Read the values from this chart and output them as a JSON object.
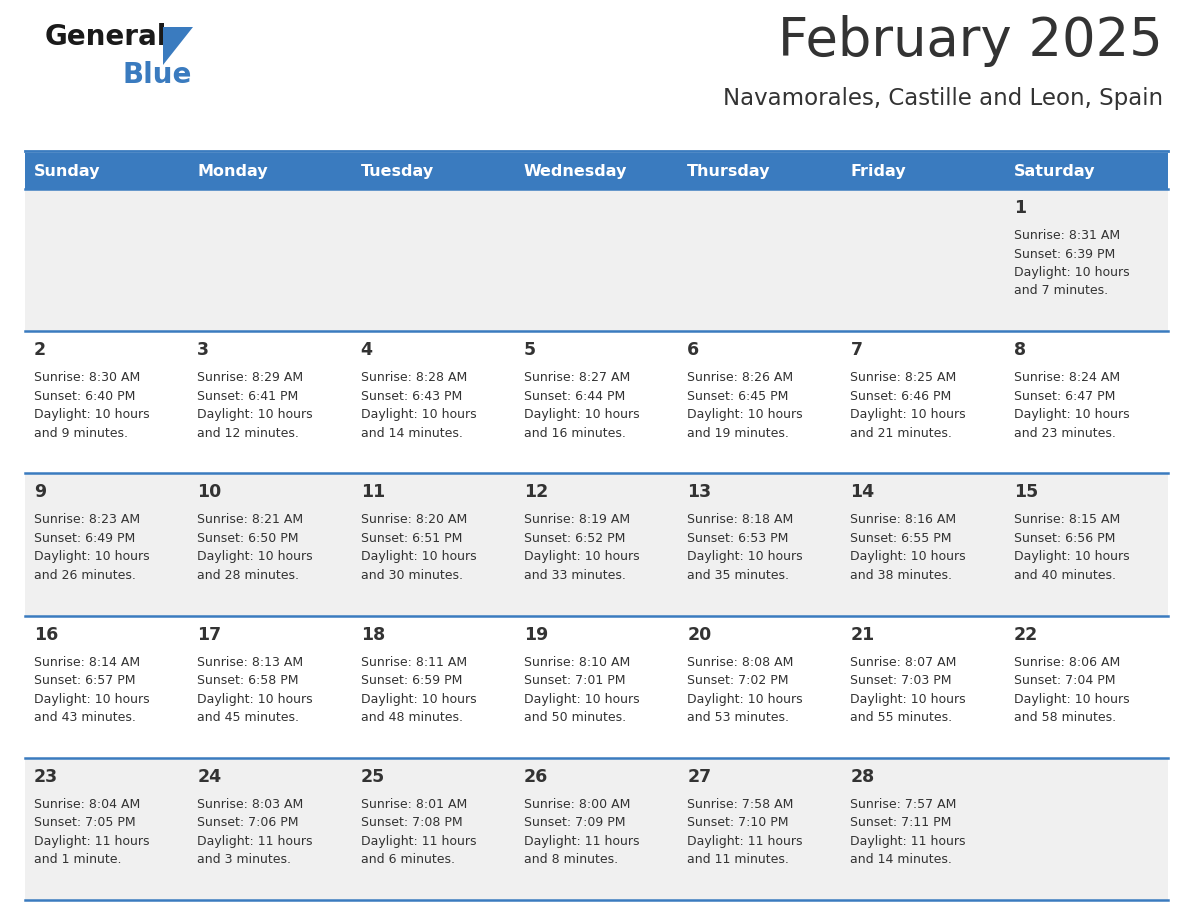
{
  "title": "February 2025",
  "subtitle": "Navamorales, Castille and Leon, Spain",
  "days_of_week": [
    "Sunday",
    "Monday",
    "Tuesday",
    "Wednesday",
    "Thursday",
    "Friday",
    "Saturday"
  ],
  "header_bg": "#3a7bbf",
  "header_text": "#FFFFFF",
  "row_bg_odd": "#F0F0F0",
  "row_bg_even": "#FFFFFF",
  "separator_color": "#3a7bbf",
  "text_color": "#333333",
  "day_num_color": "#333333",
  "calendar_data": [
    [
      null,
      null,
      null,
      null,
      null,
      null,
      {
        "day": "1",
        "sunrise": "8:31 AM",
        "sunset": "6:39 PM",
        "daylight_line1": "10 hours",
        "daylight_line2": "and 7 minutes."
      }
    ],
    [
      {
        "day": "2",
        "sunrise": "8:30 AM",
        "sunset": "6:40 PM",
        "daylight_line1": "10 hours",
        "daylight_line2": "and 9 minutes."
      },
      {
        "day": "3",
        "sunrise": "8:29 AM",
        "sunset": "6:41 PM",
        "daylight_line1": "10 hours",
        "daylight_line2": "and 12 minutes."
      },
      {
        "day": "4",
        "sunrise": "8:28 AM",
        "sunset": "6:43 PM",
        "daylight_line1": "10 hours",
        "daylight_line2": "and 14 minutes."
      },
      {
        "day": "5",
        "sunrise": "8:27 AM",
        "sunset": "6:44 PM",
        "daylight_line1": "10 hours",
        "daylight_line2": "and 16 minutes."
      },
      {
        "day": "6",
        "sunrise": "8:26 AM",
        "sunset": "6:45 PM",
        "daylight_line1": "10 hours",
        "daylight_line2": "and 19 minutes."
      },
      {
        "day": "7",
        "sunrise": "8:25 AM",
        "sunset": "6:46 PM",
        "daylight_line1": "10 hours",
        "daylight_line2": "and 21 minutes."
      },
      {
        "day": "8",
        "sunrise": "8:24 AM",
        "sunset": "6:47 PM",
        "daylight_line1": "10 hours",
        "daylight_line2": "and 23 minutes."
      }
    ],
    [
      {
        "day": "9",
        "sunrise": "8:23 AM",
        "sunset": "6:49 PM",
        "daylight_line1": "10 hours",
        "daylight_line2": "and 26 minutes."
      },
      {
        "day": "10",
        "sunrise": "8:21 AM",
        "sunset": "6:50 PM",
        "daylight_line1": "10 hours",
        "daylight_line2": "and 28 minutes."
      },
      {
        "day": "11",
        "sunrise": "8:20 AM",
        "sunset": "6:51 PM",
        "daylight_line1": "10 hours",
        "daylight_line2": "and 30 minutes."
      },
      {
        "day": "12",
        "sunrise": "8:19 AM",
        "sunset": "6:52 PM",
        "daylight_line1": "10 hours",
        "daylight_line2": "and 33 minutes."
      },
      {
        "day": "13",
        "sunrise": "8:18 AM",
        "sunset": "6:53 PM",
        "daylight_line1": "10 hours",
        "daylight_line2": "and 35 minutes."
      },
      {
        "day": "14",
        "sunrise": "8:16 AM",
        "sunset": "6:55 PM",
        "daylight_line1": "10 hours",
        "daylight_line2": "and 38 minutes."
      },
      {
        "day": "15",
        "sunrise": "8:15 AM",
        "sunset": "6:56 PM",
        "daylight_line1": "10 hours",
        "daylight_line2": "and 40 minutes."
      }
    ],
    [
      {
        "day": "16",
        "sunrise": "8:14 AM",
        "sunset": "6:57 PM",
        "daylight_line1": "10 hours",
        "daylight_line2": "and 43 minutes."
      },
      {
        "day": "17",
        "sunrise": "8:13 AM",
        "sunset": "6:58 PM",
        "daylight_line1": "10 hours",
        "daylight_line2": "and 45 minutes."
      },
      {
        "day": "18",
        "sunrise": "8:11 AM",
        "sunset": "6:59 PM",
        "daylight_line1": "10 hours",
        "daylight_line2": "and 48 minutes."
      },
      {
        "day": "19",
        "sunrise": "8:10 AM",
        "sunset": "7:01 PM",
        "daylight_line1": "10 hours",
        "daylight_line2": "and 50 minutes."
      },
      {
        "day": "20",
        "sunrise": "8:08 AM",
        "sunset": "7:02 PM",
        "daylight_line1": "10 hours",
        "daylight_line2": "and 53 minutes."
      },
      {
        "day": "21",
        "sunrise": "8:07 AM",
        "sunset": "7:03 PM",
        "daylight_line1": "10 hours",
        "daylight_line2": "and 55 minutes."
      },
      {
        "day": "22",
        "sunrise": "8:06 AM",
        "sunset": "7:04 PM",
        "daylight_line1": "10 hours",
        "daylight_line2": "and 58 minutes."
      }
    ],
    [
      {
        "day": "23",
        "sunrise": "8:04 AM",
        "sunset": "7:05 PM",
        "daylight_line1": "11 hours",
        "daylight_line2": "and 1 minute."
      },
      {
        "day": "24",
        "sunrise": "8:03 AM",
        "sunset": "7:06 PM",
        "daylight_line1": "11 hours",
        "daylight_line2": "and 3 minutes."
      },
      {
        "day": "25",
        "sunrise": "8:01 AM",
        "sunset": "7:08 PM",
        "daylight_line1": "11 hours",
        "daylight_line2": "and 6 minutes."
      },
      {
        "day": "26",
        "sunrise": "8:00 AM",
        "sunset": "7:09 PM",
        "daylight_line1": "11 hours",
        "daylight_line2": "and 8 minutes."
      },
      {
        "day": "27",
        "sunrise": "7:58 AM",
        "sunset": "7:10 PM",
        "daylight_line1": "11 hours",
        "daylight_line2": "and 11 minutes."
      },
      {
        "day": "28",
        "sunrise": "7:57 AM",
        "sunset": "7:11 PM",
        "daylight_line1": "11 hours",
        "daylight_line2": "and 14 minutes."
      },
      null
    ]
  ],
  "logo_text_general": "General",
  "logo_text_blue": "Blue",
  "logo_color_general": "#1a1a1a",
  "logo_color_blue": "#3a7bbf",
  "figsize": [
    11.88,
    9.18
  ],
  "dpi": 100
}
